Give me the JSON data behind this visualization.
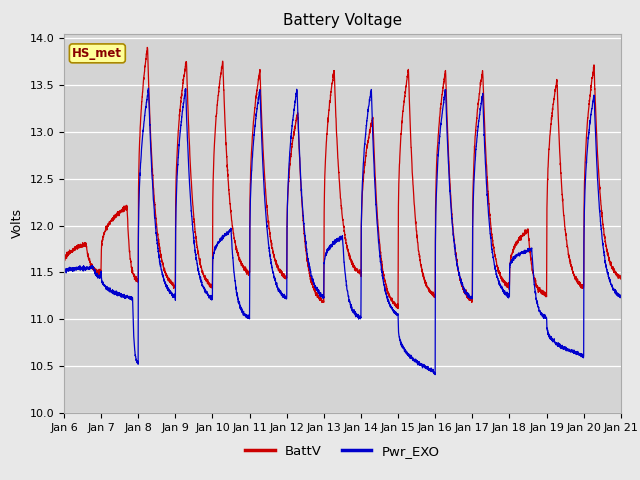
{
  "title": "Battery Voltage",
  "ylabel": "Volts",
  "ylim": [
    10.0,
    14.05
  ],
  "yticks": [
    10.0,
    10.5,
    11.0,
    11.5,
    12.0,
    12.5,
    13.0,
    13.5,
    14.0
  ],
  "xtick_labels": [
    "Jan 6",
    "Jan 7",
    "Jan 8",
    "Jan 9",
    "Jan 10",
    "Jan 11",
    "Jan 12",
    "Jan 13",
    "Jan 14",
    "Jan 15",
    "Jan 16",
    "Jan 17",
    "Jan 18",
    "Jan 19",
    "Jan 20",
    "Jan 21"
  ],
  "batt_color": "#cc0000",
  "pwr_color": "#0000cc",
  "fig_bg_color": "#e8e8e8",
  "plot_bg_color": "#d4d4d4",
  "legend_labels": [
    "BattV",
    "Pwr_EXO"
  ],
  "station_label": "HS_met",
  "title_fontsize": 11,
  "label_fontsize": 9,
  "tick_fontsize": 8
}
